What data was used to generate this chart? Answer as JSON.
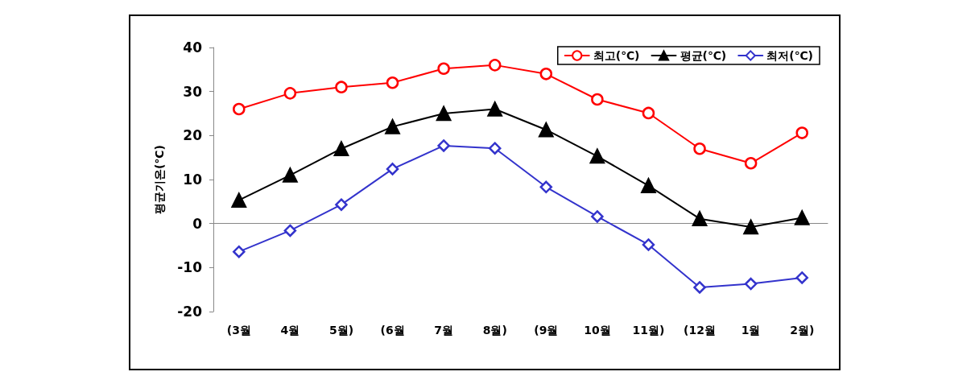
{
  "chart_data": {
    "type": "line",
    "ylabel": "평균기온(℃)",
    "categories": [
      "(3월",
      "4월",
      "5월)",
      "(6월",
      "7월",
      "8월)",
      "(9월",
      "10월",
      "11월)",
      "(12월",
      "1월",
      "2월)"
    ],
    "series": [
      {
        "name": "최고(℃)",
        "color": "#ff0000",
        "marker": "circle",
        "values": [
          26,
          29.6,
          31,
          32,
          35.2,
          36,
          34,
          28.2,
          25.1,
          17,
          13.7,
          20.6
        ]
      },
      {
        "name": "평균(℃)",
        "color": "#000000",
        "marker": "triangle",
        "values": [
          5.3,
          11,
          17,
          22,
          25,
          26,
          21.3,
          15.3,
          8.6,
          1.1,
          -0.8,
          1.3
        ]
      },
      {
        "name": "최저(℃)",
        "color": "#3333cc",
        "marker": "diamond",
        "values": [
          -6.4,
          -1.6,
          4.3,
          12.4,
          17.7,
          17.1,
          8.3,
          1.6,
          -4.8,
          -14.5,
          -13.7,
          -12.3
        ]
      }
    ],
    "ylim": [
      -20,
      40
    ],
    "yticks": [
      -20,
      -10,
      0,
      10,
      20,
      30,
      40
    ],
    "legend": "top right"
  }
}
